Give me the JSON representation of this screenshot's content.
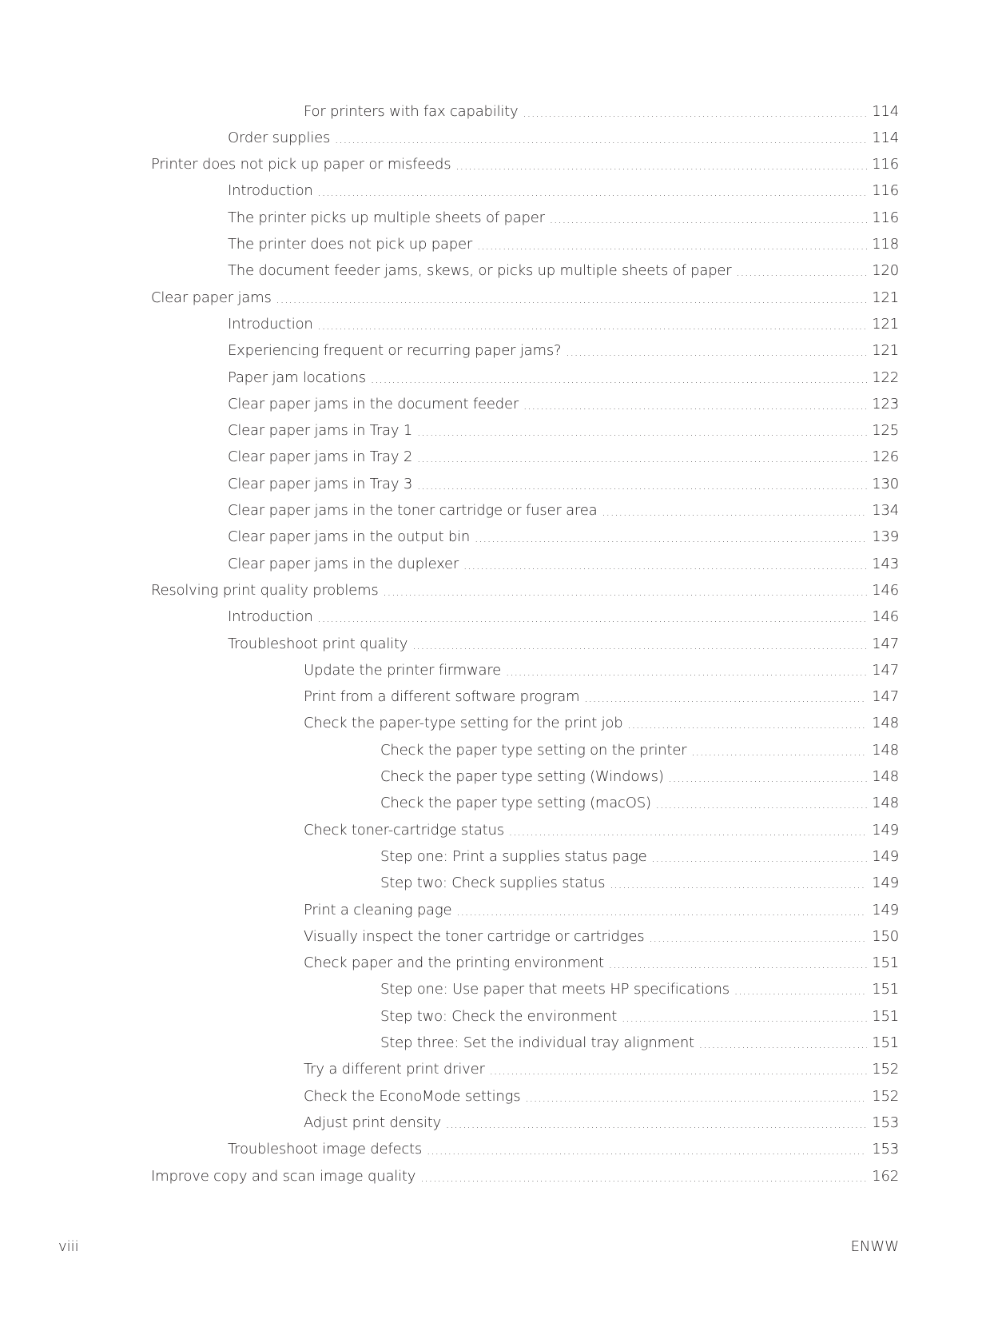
{
  "entries": [
    {
      "title": "For printers with fax capability",
      "page": "114",
      "level": 3
    },
    {
      "title": "Order supplies",
      "page": "114",
      "level": 2
    },
    {
      "title": "Printer does not pick up paper or misfeeds",
      "page": "116",
      "level": 1
    },
    {
      "title": "Introduction",
      "page": "116",
      "level": 2
    },
    {
      "title": "The printer picks up multiple sheets of paper",
      "page": "116",
      "level": 2
    },
    {
      "title": "The printer does not pick up paper",
      "page": "118",
      "level": 2
    },
    {
      "title": "The document feeder jams, skews, or picks up multiple sheets of paper",
      "page": "120",
      "level": 2
    },
    {
      "title": "Clear paper jams",
      "page": "121",
      "level": 1
    },
    {
      "title": "Introduction",
      "page": "121",
      "level": 2
    },
    {
      "title": "Experiencing frequent or recurring paper jams?",
      "page": "121",
      "level": 2
    },
    {
      "title": "Paper jam locations",
      "page": "122",
      "level": 2
    },
    {
      "title": "Clear paper jams in the document feeder",
      "page": "123",
      "level": 2
    },
    {
      "title": "Clear paper jams in Tray 1",
      "page": "125",
      "level": 2
    },
    {
      "title": "Clear paper jams in Tray 2",
      "page": "126",
      "level": 2
    },
    {
      "title": "Clear paper jams in Tray 3",
      "page": "130",
      "level": 2
    },
    {
      "title": "Clear paper jams in the toner cartridge or fuser area",
      "page": "134",
      "level": 2
    },
    {
      "title": "Clear paper jams in the output bin",
      "page": "139",
      "level": 2
    },
    {
      "title": "Clear paper jams in the duplexer",
      "page": "143",
      "level": 2
    },
    {
      "title": "Resolving print quality problems",
      "page": "146",
      "level": 1
    },
    {
      "title": "Introduction",
      "page": "146",
      "level": 2
    },
    {
      "title": "Troubleshoot print quality",
      "page": "147",
      "level": 2
    },
    {
      "title": "Update the printer firmware",
      "page": "147",
      "level": 3
    },
    {
      "title": "Print from a different software program",
      "page": "147",
      "level": 3
    },
    {
      "title": "Check the paper-type setting for the print job",
      "page": "148",
      "level": 3
    },
    {
      "title": "Check the paper type setting on the printer",
      "page": "148",
      "level": 4
    },
    {
      "title": "Check the paper type setting (Windows)",
      "page": "148",
      "level": 4
    },
    {
      "title": "Check the paper type setting (macOS)",
      "page": "148",
      "level": 4
    },
    {
      "title": "Check toner-cartridge status",
      "page": "149",
      "level": 3
    },
    {
      "title": "Step one: Print a supplies status page",
      "page": "149",
      "level": 4
    },
    {
      "title": "Step two: Check supplies status",
      "page": "149",
      "level": 4
    },
    {
      "title": "Print a cleaning page",
      "page": "149",
      "level": 3
    },
    {
      "title": "Visually inspect the toner cartridge or cartridges",
      "page": "150",
      "level": 3
    },
    {
      "title": "Check paper and the printing environment",
      "page": "151",
      "level": 3
    },
    {
      "title": "Step one: Use paper that meets HP specifications",
      "page": "151",
      "level": 4
    },
    {
      "title": "Step two: Check the environment",
      "page": "151",
      "level": 4
    },
    {
      "title": "Step three: Set the individual tray alignment",
      "page": "151",
      "level": 4
    },
    {
      "title": "Try a different print driver",
      "page": "152",
      "level": 3
    },
    {
      "title": "Check the EconoMode settings",
      "page": "152",
      "level": 3
    },
    {
      "title": "Adjust print density",
      "page": "153",
      "level": 3
    },
    {
      "title": "Troubleshoot image defects",
      "page": "153",
      "level": 2
    },
    {
      "title": "Improve copy and scan image quality",
      "page": "162",
      "level": 1
    }
  ],
  "footer": {
    "page_number": "viii",
    "doc_code": "ENWW"
  }
}
